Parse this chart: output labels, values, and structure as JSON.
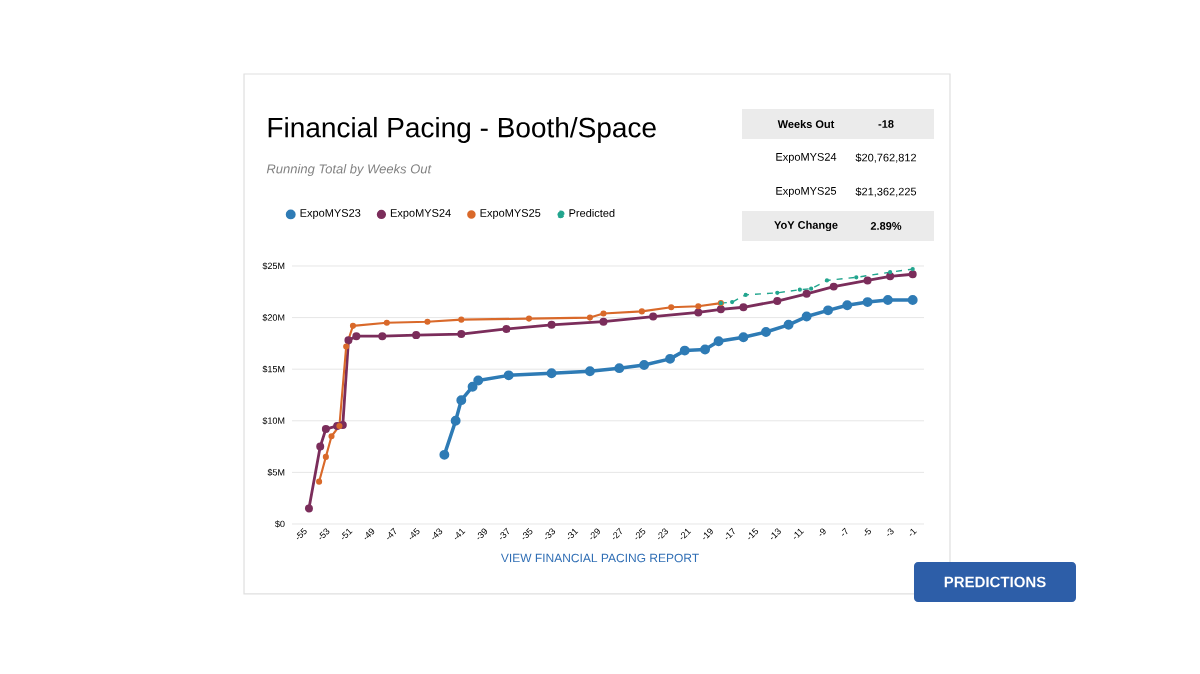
{
  "chart_data": {
    "type": "line",
    "title": "Financial Pacing - Booth/Space",
    "subtitle": "Running Total by Weeks Out",
    "annotations": [
      "Weeks Out",
      "-18",
      "ExpoMYS24",
      "$20,762,812",
      "ExpoMYS25",
      "$21,362,225",
      "YoY Change",
      "2.89%",
      "VIEW FINANCIAL PACING REPORT",
      "PREDICTIONS"
    ],
    "xlim": [
      -56,
      0
    ],
    "ylim": [
      0,
      25
    ],
    "xticks": [
      -55,
      -53,
      -51,
      -49,
      -47,
      -45,
      -43,
      -41,
      -39,
      -37,
      -35,
      -33,
      -31,
      -29,
      -27,
      -25,
      -23,
      -21,
      -19,
      -17,
      -15,
      -13,
      -11,
      -9,
      -7,
      -5,
      -3,
      -1
    ],
    "yticks": [
      {
        "value": 0,
        "label": "$0"
      },
      {
        "value": 5,
        "label": "$5M"
      },
      {
        "value": 10,
        "label": "$10M"
      },
      {
        "value": 15,
        "label": "$15M"
      },
      {
        "value": 20,
        "label": "$20M"
      },
      {
        "value": 25,
        "label": "$25M"
      }
    ],
    "grid": "y",
    "legend": "top left",
    "marker": "circle",
    "series": [
      {
        "name": "ExpoMYS23",
        "color": "#2e7bb5",
        "x": [
          -42.5,
          -41.5,
          -41,
          -40,
          -39.5,
          -36.8,
          -33,
          -29.6,
          -27,
          -24.8,
          -22.5,
          -21.2,
          -19.4,
          -18.2,
          -16,
          -14,
          -12,
          -10.4,
          -8.5,
          -6.8,
          -5,
          -3.2,
          -1
        ],
        "values": [
          6.7,
          10,
          12,
          13.3,
          13.9,
          14.4,
          14.6,
          14.8,
          15.1,
          15.4,
          16.0,
          16.8,
          16.9,
          17.7,
          18.1,
          18.6,
          19.3,
          20.1,
          20.7,
          21.2,
          21.5,
          21.7,
          21.7
        ]
      },
      {
        "name": "ExpoMYS24",
        "color": "#7b2d5b",
        "x": [
          -54.5,
          -53.5,
          -53,
          -52,
          -51.5,
          -51,
          -50.3,
          -48,
          -45,
          -41,
          -37,
          -33,
          -28.4,
          -24,
          -20,
          -18,
          -16,
          -13,
          -10.4,
          -8,
          -5,
          -3,
          -1
        ],
        "values": [
          1.5,
          7.5,
          9.2,
          9.5,
          9.6,
          17.8,
          18.2,
          18.2,
          18.3,
          18.4,
          18.9,
          19.3,
          19.6,
          20.1,
          20.5,
          20.8,
          21.0,
          21.6,
          22.3,
          23.0,
          23.6,
          24.0,
          24.2
        ]
      },
      {
        "name": "ExpoMYS25",
        "color": "#d9692a",
        "x": [
          -53.6,
          -53,
          -52.5,
          -51.8,
          -51.2,
          -50.6,
          -47.6,
          -44,
          -41,
          -35,
          -29.6,
          -28.4,
          -25,
          -22.4,
          -20,
          -18
        ],
        "values": [
          4.1,
          6.5,
          8.5,
          9.5,
          17.2,
          19.2,
          19.5,
          19.6,
          19.8,
          19.9,
          20.0,
          20.4,
          20.6,
          21.0,
          21.1,
          21.4
        ]
      },
      {
        "name": "Predicted",
        "color": "#22a58e",
        "line_style": "dashed",
        "x": [
          -18,
          -17,
          -15.8,
          -13,
          -11,
          -10,
          -8.6,
          -6,
          -3,
          -1
        ],
        "values": [
          21.4,
          21.5,
          22.2,
          22.4,
          22.7,
          22.8,
          23.6,
          23.9,
          24.4,
          24.7
        ]
      }
    ]
  }
}
